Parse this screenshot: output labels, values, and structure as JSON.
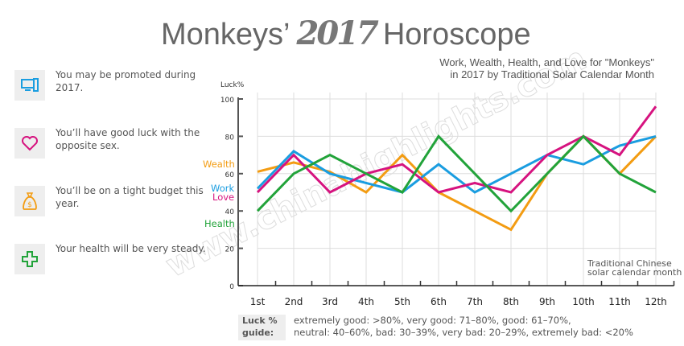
{
  "header": {
    "title_left": "Monkeys’",
    "title_logo": "2017",
    "title_right": "Horoscope",
    "subtitle_line1": "Work, Wealth, Health, and Love for \"Monkeys\"",
    "subtitle_line2": "in 2017 by Traditional Solar Calendar Month"
  },
  "tips": [
    {
      "icon": "computer-icon",
      "color": "#1a9de0",
      "text": "You may be promoted during 2017."
    },
    {
      "icon": "heart-icon",
      "color": "#d6137f",
      "text": "You’ll have  good luck with the opposite sex."
    },
    {
      "icon": "money-bag-icon",
      "color": "#f39c12",
      "text": "You’ll be on a tight budget this year."
    },
    {
      "icon": "health-cross-icon",
      "color": "#22a33a",
      "text": "Your health will be very steady."
    }
  ],
  "chart_data": {
    "type": "line",
    "ylabel": "Luck%",
    "xlabel_line1": "Traditional Chinese",
    "xlabel_line2": "solar calendar month",
    "ylim": [
      0,
      100
    ],
    "yticks": [
      "0",
      "20",
      "40",
      "60",
      "80",
      "100"
    ],
    "grid": true,
    "legend_placement": "left",
    "categories": [
      "1st",
      "2nd",
      "3rd",
      "4th",
      "5th",
      "6th",
      "7th",
      "8th",
      "9th",
      "10th",
      "11th",
      "12th"
    ],
    "series": [
      {
        "name": "Wealth",
        "color": "#f39c12",
        "values": [
          61,
          66,
          61,
          50,
          70,
          50,
          40,
          30,
          60,
          80,
          60,
          80
        ]
      },
      {
        "name": "Work",
        "color": "#1a9de0",
        "values": [
          52,
          72,
          60,
          55,
          50,
          65,
          50,
          60,
          70,
          65,
          75,
          80
        ]
      },
      {
        "name": "Love",
        "color": "#d6137f",
        "values": [
          50,
          70,
          50,
          60,
          65,
          50,
          55,
          50,
          70,
          80,
          70,
          96
        ]
      },
      {
        "name": "Health",
        "color": "#22a33a",
        "values": [
          40,
          60,
          70,
          60,
          50,
          80,
          60,
          40,
          60,
          80,
          60,
          50
        ]
      }
    ]
  },
  "guide": {
    "key_line1": "Luck %",
    "key_line2": "guide:",
    "line1": "extremely good: >80%, very good: 71–80%, good: 61–70%,",
    "line2": "neutral: 40–60%, bad: 30–39%, very bad: 20–29%, extremely bad: <20%"
  },
  "watermark": "www.chinahighlights.com"
}
